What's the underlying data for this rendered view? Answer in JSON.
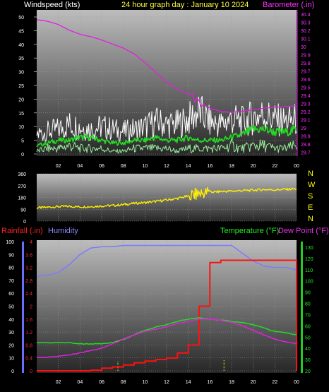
{
  "chart_data": [
    {
      "type": "line",
      "title": "24 hour graph day : January 10 2024",
      "left_label": "Windspeed (kts)",
      "right_label": "Barometer (.in)",
      "x_ticks": [
        "02",
        "04",
        "06",
        "08",
        "10",
        "12",
        "14",
        "16",
        "18",
        "20",
        "22",
        "00"
      ],
      "y_left_ticks": [
        "0",
        "5",
        "10",
        "15",
        "20",
        "25",
        "30",
        "35",
        "40",
        "45",
        "50"
      ],
      "y_left_range": [
        0,
        50
      ],
      "y_right_ticks": [
        "28.7",
        "28.8",
        "28.9",
        "29",
        "29.1",
        "29.2",
        "29.3",
        "29.4",
        "29.5",
        "29.6",
        "29.7",
        "29.8",
        "29.9",
        "30",
        "30.1",
        "30.2",
        "30.3",
        "30.4"
      ],
      "y_right_range": [
        28.65,
        30.45
      ],
      "x_range": [
        0,
        24
      ],
      "series": [
        {
          "key": "barometer",
          "color": "#e020e0",
          "axis": "right",
          "x": [
            0,
            1,
            2,
            3,
            4,
            5,
            6,
            7,
            8,
            9,
            10,
            11,
            12,
            13,
            14,
            15,
            16,
            17,
            18,
            19,
            20,
            21,
            22,
            23,
            24
          ],
          "values": [
            30.33,
            30.31,
            30.27,
            30.2,
            30.15,
            30.12,
            30.08,
            30.03,
            29.98,
            29.91,
            29.8,
            29.68,
            29.56,
            29.47,
            29.42,
            29.32,
            29.24,
            29.2,
            29.19,
            29.2,
            29.22,
            29.24,
            29.25,
            29.26,
            29.27
          ]
        },
        {
          "key": "gust",
          "color": "#ffffff",
          "axis": "left",
          "x": [
            0,
            1,
            2,
            3,
            4,
            5,
            6,
            7,
            8,
            9,
            10,
            11,
            12,
            13,
            14,
            15,
            16,
            17,
            18,
            19,
            20,
            21,
            22,
            23,
            24
          ],
          "values": [
            8,
            9,
            10,
            12,
            11,
            10,
            11,
            10,
            9,
            10,
            11,
            13,
            12,
            12,
            14,
            17,
            13,
            12,
            14,
            13,
            15,
            16,
            14,
            13,
            14
          ]
        },
        {
          "key": "avg",
          "color": "#22dd22",
          "axis": "left",
          "x": [
            0,
            1,
            2,
            3,
            4,
            5,
            6,
            7,
            8,
            9,
            10,
            11,
            12,
            13,
            14,
            15,
            16,
            17,
            18,
            19,
            20,
            21,
            22,
            23,
            24
          ],
          "values": [
            3,
            4,
            5,
            5,
            6,
            6,
            5,
            4,
            4,
            5,
            5,
            6,
            5,
            5,
            6,
            5,
            5,
            5,
            6,
            7,
            9,
            9,
            8,
            8,
            9
          ]
        },
        {
          "key": "low",
          "color": "#99ee99",
          "axis": "left",
          "x": [
            0,
            1,
            2,
            3,
            4,
            5,
            6,
            7,
            8,
            9,
            10,
            11,
            12,
            13,
            14,
            15,
            16,
            17,
            18,
            19,
            20,
            21,
            22,
            23,
            24
          ],
          "values": [
            1,
            2,
            2,
            3,
            2,
            2,
            2,
            1,
            1,
            2,
            2,
            2,
            2,
            1,
            2,
            2,
            2,
            2,
            3,
            2,
            3,
            3,
            2,
            2,
            3
          ]
        }
      ]
    },
    {
      "type": "line",
      "y_ticks": [
        "0",
        "90",
        "180",
        "270",
        "360"
      ],
      "y_range": [
        0,
        360
      ],
      "compass_labels": [
        "N",
        "W",
        "S",
        "E",
        "N"
      ],
      "x_range": [
        0,
        24
      ],
      "series": [
        {
          "key": "direction",
          "color": "#ffee00",
          "x": [
            0,
            1,
            2,
            3,
            4,
            5,
            6,
            7,
            8,
            9,
            10,
            11,
            12,
            13,
            14,
            15,
            16,
            17,
            18,
            19,
            20,
            21,
            22,
            23,
            24
          ],
          "values": [
            100,
            105,
            110,
            112,
            108,
            110,
            115,
            118,
            125,
            135,
            140,
            150,
            160,
            172,
            190,
            210,
            220,
            225,
            228,
            232,
            235,
            240,
            238,
            242,
            245
          ]
        }
      ]
    },
    {
      "type": "line",
      "labels": {
        "rainfall": "Rainfall (.in)",
        "humidity": "Humidity",
        "temperature": "Temperature (°F)",
        "dew_point": "Dew Point (°F)"
      },
      "x_ticks": [
        "02",
        "04",
        "06",
        "08",
        "10",
        "12",
        "14",
        "16",
        "18",
        "20",
        "22",
        "00"
      ],
      "y_humidity_ticks": [
        "0",
        "10",
        "20",
        "30",
        "40",
        "50",
        "60",
        "70",
        "80",
        "90",
        "100"
      ],
      "y_rain_ticks": [
        "0",
        "0.4",
        "0.8",
        "1.2",
        "1.6",
        "2",
        "2.4",
        "2.8",
        "3.2",
        "3.6",
        "4"
      ],
      "y_temp_ticks": [
        "20",
        "30",
        "40",
        "50",
        "60",
        "70",
        "80",
        "90",
        "100",
        "110",
        "120",
        "130"
      ],
      "humidity_range": [
        0,
        100
      ],
      "rain_range": [
        0,
        4
      ],
      "temp_range": [
        20,
        135
      ],
      "x_range": [
        0,
        24
      ],
      "series": [
        {
          "key": "humidity",
          "color": "#7b7bff",
          "axis": "humidity",
          "x": [
            0,
            1,
            2,
            3,
            4,
            5,
            6,
            7,
            8,
            9,
            10,
            11,
            12,
            13,
            14,
            15,
            16,
            17,
            18,
            19,
            20,
            21,
            22,
            23,
            24
          ],
          "values": [
            73,
            74,
            76,
            82,
            90,
            95,
            96,
            96,
            97,
            97,
            97,
            97,
            97,
            97,
            97,
            97,
            97,
            97,
            97,
            91,
            85,
            81,
            80,
            80,
            78
          ]
        },
        {
          "key": "rainfall",
          "color": "#ff1010",
          "axis": "rain",
          "x": [
            0,
            1,
            2,
            3,
            4,
            5,
            6,
            7,
            8,
            9,
            10,
            11,
            12,
            13,
            14,
            15,
            16,
            17,
            18,
            19,
            20,
            21,
            22,
            23,
            24
          ],
          "values": [
            0,
            0,
            0,
            0,
            0,
            0.02,
            0.08,
            0.12,
            0.18,
            0.25,
            0.3,
            0.35,
            0.4,
            0.55,
            0.8,
            2.0,
            3.35,
            3.42,
            3.42,
            3.42,
            3.42,
            3.42,
            3.42,
            3.42,
            3.42
          ]
        },
        {
          "key": "temperature",
          "color": "#22dd22",
          "axis": "temp",
          "x": [
            0,
            1,
            2,
            3,
            4,
            5,
            6,
            7,
            8,
            9,
            10,
            11,
            12,
            13,
            14,
            15,
            16,
            17,
            18,
            19,
            20,
            21,
            22,
            23,
            24
          ],
          "values": [
            45,
            45,
            45,
            45,
            44,
            44,
            44,
            45,
            48,
            52,
            56,
            59,
            61,
            64,
            66,
            67,
            66,
            65,
            64,
            63,
            61,
            58,
            55,
            54,
            52
          ]
        },
        {
          "key": "dew_point",
          "color": "#dd22dd",
          "axis": "temp",
          "x": [
            0,
            1,
            2,
            3,
            4,
            5,
            6,
            7,
            8,
            9,
            10,
            11,
            12,
            13,
            14,
            15,
            16,
            17,
            18,
            19,
            20,
            21,
            22,
            23,
            24
          ],
          "values": [
            32,
            32,
            33,
            34,
            36,
            38,
            40,
            44,
            48,
            52,
            55,
            57,
            59,
            62,
            64,
            66,
            66,
            65,
            63,
            60,
            56,
            52,
            48,
            46,
            44
          ]
        }
      ],
      "rain_rate_marks": [
        {
          "x": 7.5,
          "value": 0.3
        },
        {
          "x": 17.3,
          "value": 0.35
        }
      ]
    }
  ]
}
